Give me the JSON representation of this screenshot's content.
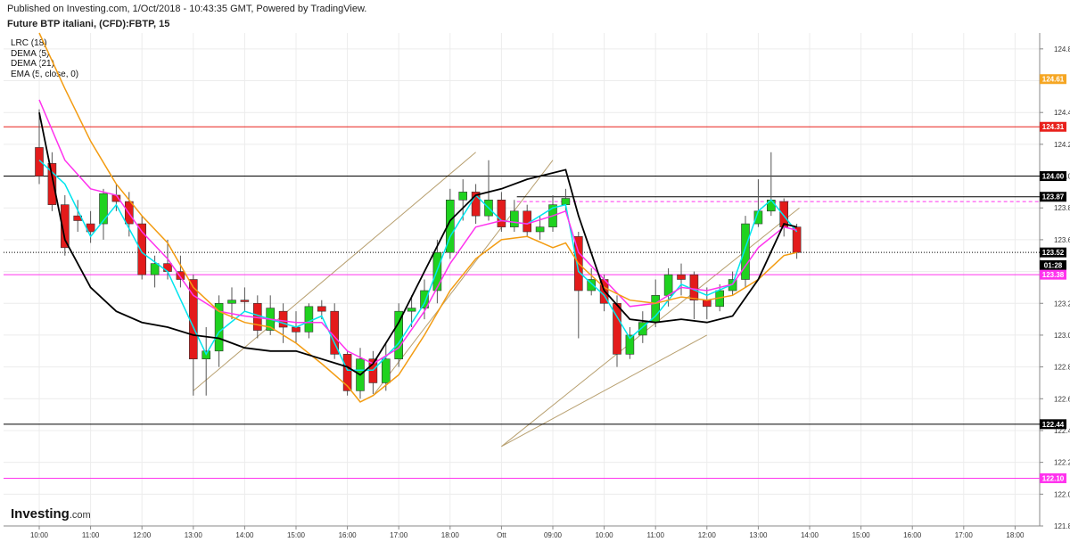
{
  "header": {
    "published": "Published on Investing.com, 1/Oct/2018 - 10:43:35 GMT, Powered by TradingView.",
    "title": "Future BTP italiani, (CFD):FBTP, 15"
  },
  "legend": [
    "LRC (18)",
    "DEMA (5)",
    "DEMA (21)",
    "EMA (5, close, 0)"
  ],
  "brand": {
    "name": "Investing",
    "suffix": ".com"
  },
  "chart_data": {
    "type": "candlestick",
    "ylim": [
      121.8,
      124.9
    ],
    "yticks": [
      "124.80",
      "124.40",
      "124.20",
      "124.00",
      "123.80",
      "123.60",
      "123.20",
      "123.00",
      "122.80",
      "122.60",
      "122.40",
      "122.20",
      "122.00",
      "121.80"
    ],
    "xticks": [
      "10:00",
      "11:00",
      "12:00",
      "13:00",
      "14:00",
      "15:00",
      "16:00",
      "17:00",
      "18:00",
      "Ott",
      "09:00",
      "10:00",
      "11:00",
      "12:00",
      "13:00",
      "14:00",
      "15:00",
      "16:00",
      "17:00",
      "18:00"
    ],
    "price_tags": [
      {
        "label": "124.61",
        "value": 124.61,
        "color": "#f5a623"
      },
      {
        "label": "124.31",
        "value": 124.31,
        "color": "#e8211c"
      },
      {
        "label": "124.00",
        "value": 124.0,
        "color": "#000000"
      },
      {
        "label": "123.87",
        "value": 123.87,
        "color": "#000000"
      },
      {
        "label": "123.52",
        "value": 123.52,
        "color": "#000000"
      },
      {
        "label": "01:28",
        "value": 123.44,
        "color": "#000000"
      },
      {
        "label": "123.38",
        "value": 123.38,
        "color": "#ff33ee"
      },
      {
        "label": "122.44",
        "value": 122.44,
        "color": "#000000"
      },
      {
        "label": "122.10",
        "value": 122.1,
        "color": "#ff33ee"
      }
    ],
    "hlines": [
      {
        "value": 124.31,
        "color": "#e8211c",
        "style": "solid"
      },
      {
        "value": 124.0,
        "color": "#000000",
        "style": "solid"
      },
      {
        "value": 123.87,
        "color": "#000000",
        "style": "solid",
        "from": 9.3
      },
      {
        "value": 123.84,
        "color": "#ff33ee",
        "style": "dashed",
        "from": 9.3
      },
      {
        "value": 123.52,
        "color": "#000000",
        "style": "dotted"
      },
      {
        "value": 123.38,
        "color": "#ff33ee",
        "style": "solid"
      },
      {
        "value": 122.44,
        "color": "#000000",
        "style": "solid"
      },
      {
        "value": 122.1,
        "color": "#ff33ee",
        "style": "solid"
      }
    ],
    "candles": [
      [
        0.0,
        124.18,
        124.0,
        124.42,
        123.95
      ],
      [
        0.25,
        124.08,
        123.82,
        124.15,
        123.78
      ],
      [
        0.5,
        123.82,
        123.55,
        123.88,
        123.5
      ],
      [
        0.75,
        123.75,
        123.72,
        123.85,
        123.65
      ],
      [
        1.0,
        123.7,
        123.65,
        123.78,
        123.58
      ],
      [
        1.25,
        123.7,
        123.89,
        123.92,
        123.6
      ],
      [
        1.5,
        123.88,
        123.84,
        123.95,
        123.78
      ],
      [
        1.75,
        123.84,
        123.7,
        123.9,
        123.62
      ],
      [
        2.0,
        123.7,
        123.38,
        123.75,
        123.35
      ],
      [
        2.25,
        123.38,
        123.45,
        123.5,
        123.3
      ],
      [
        2.5,
        123.45,
        123.4,
        123.6,
        123.35
      ],
      [
        2.75,
        123.4,
        123.35,
        123.5,
        123.3
      ],
      [
        3.0,
        123.35,
        122.85,
        123.38,
        122.62
      ],
      [
        3.25,
        122.85,
        122.9,
        123.05,
        122.62
      ],
      [
        3.5,
        122.9,
        123.2,
        123.25,
        122.8
      ],
      [
        3.75,
        123.2,
        123.22,
        123.3,
        123.1
      ],
      [
        4.0,
        123.22,
        123.21,
        123.3,
        123.15
      ],
      [
        4.25,
        123.2,
        123.03,
        123.25,
        122.98
      ],
      [
        4.5,
        123.03,
        123.17,
        123.25,
        123.0
      ],
      [
        4.75,
        123.15,
        123.05,
        123.2,
        122.95
      ],
      [
        5.0,
        123.05,
        123.02,
        123.15,
        122.95
      ],
      [
        5.25,
        123.02,
        123.18,
        123.2,
        122.98
      ],
      [
        5.5,
        123.18,
        123.15,
        123.22,
        123.1
      ],
      [
        5.75,
        123.15,
        122.88,
        123.2,
        122.85
      ],
      [
        6.0,
        122.88,
        122.65,
        122.9,
        122.62
      ],
      [
        6.25,
        122.65,
        122.85,
        122.92,
        122.6
      ],
      [
        6.5,
        122.85,
        122.7,
        122.9,
        122.63
      ],
      [
        6.75,
        122.7,
        122.85,
        122.95,
        122.65
      ],
      [
        7.0,
        122.85,
        123.15,
        123.2,
        122.8
      ],
      [
        7.25,
        123.15,
        123.17,
        123.25,
        123.05
      ],
      [
        7.5,
        123.17,
        123.28,
        123.35,
        123.1
      ],
      [
        7.75,
        123.28,
        123.52,
        123.6,
        123.2
      ],
      [
        8.0,
        123.52,
        123.85,
        123.92,
        123.48
      ],
      [
        8.25,
        123.85,
        123.9,
        123.98,
        123.72
      ],
      [
        8.5,
        123.9,
        123.75,
        123.95,
        123.7
      ],
      [
        8.75,
        123.75,
        123.85,
        124.1,
        123.72
      ],
      [
        9.0,
        123.85,
        123.68,
        123.9,
        123.65
      ],
      [
        9.25,
        123.68,
        123.78,
        123.85,
        123.65
      ],
      [
        9.5,
        123.78,
        123.65,
        123.82,
        123.62
      ],
      [
        9.75,
        123.65,
        123.68,
        123.75,
        123.6
      ],
      [
        10.0,
        123.68,
        123.82,
        123.88,
        123.65
      ],
      [
        10.25,
        123.82,
        123.86,
        123.92,
        123.78
      ],
      [
        10.5,
        123.62,
        123.28,
        123.65,
        122.98
      ],
      [
        10.75,
        123.28,
        123.35,
        123.42,
        123.25
      ],
      [
        11.0,
        123.35,
        123.2,
        123.38,
        123.15
      ],
      [
        11.25,
        123.2,
        122.88,
        123.25,
        122.8
      ],
      [
        11.5,
        122.88,
        123.0,
        123.05,
        122.85
      ],
      [
        11.75,
        123.0,
        123.08,
        123.15,
        122.95
      ],
      [
        12.0,
        123.08,
        123.25,
        123.35,
        123.05
      ],
      [
        12.25,
        123.25,
        123.38,
        123.42,
        123.18
      ],
      [
        12.5,
        123.38,
        123.35,
        123.45,
        123.25
      ],
      [
        12.75,
        123.38,
        123.22,
        123.4,
        123.1
      ],
      [
        13.0,
        123.22,
        123.18,
        123.3,
        123.1
      ],
      [
        13.25,
        123.18,
        123.28,
        123.32,
        123.15
      ],
      [
        13.5,
        123.28,
        123.35,
        123.4,
        123.25
      ],
      [
        13.75,
        123.35,
        123.7,
        123.75,
        123.3
      ],
      [
        14.0,
        123.7,
        123.78,
        123.98,
        123.68
      ],
      [
        14.25,
        123.78,
        123.85,
        124.15,
        123.75
      ],
      [
        14.5,
        123.84,
        123.68,
        123.86,
        123.62
      ],
      [
        14.75,
        123.68,
        123.52,
        123.7,
        123.48
      ]
    ],
    "series": [
      {
        "name": "DEMA (5)",
        "color": "#00e5ee",
        "points": [
          [
            0,
            124.1
          ],
          [
            0.5,
            123.95
          ],
          [
            1.0,
            123.62
          ],
          [
            1.5,
            123.82
          ],
          [
            2.0,
            123.52
          ],
          [
            2.5,
            123.4
          ],
          [
            3.0,
            123.05
          ],
          [
            3.25,
            122.88
          ],
          [
            3.5,
            123.02
          ],
          [
            4.0,
            123.15
          ],
          [
            4.5,
            123.1
          ],
          [
            5.0,
            123.05
          ],
          [
            5.5,
            123.12
          ],
          [
            6.0,
            122.78
          ],
          [
            6.5,
            122.78
          ],
          [
            7.0,
            122.95
          ],
          [
            7.5,
            123.2
          ],
          [
            8.0,
            123.62
          ],
          [
            8.5,
            123.88
          ],
          [
            9.0,
            123.72
          ],
          [
            9.5,
            123.7
          ],
          [
            10.0,
            123.8
          ],
          [
            10.25,
            123.82
          ],
          [
            10.5,
            123.4
          ],
          [
            11.0,
            123.25
          ],
          [
            11.5,
            122.98
          ],
          [
            12.0,
            123.12
          ],
          [
            12.5,
            123.32
          ],
          [
            13.0,
            123.25
          ],
          [
            13.5,
            123.32
          ],
          [
            14.0,
            123.78
          ],
          [
            14.25,
            123.85
          ],
          [
            14.5,
            123.75
          ],
          [
            14.75,
            123.65
          ]
        ]
      },
      {
        "name": "DEMA (21)",
        "color": "#ff33ee",
        "points": [
          [
            0,
            124.48
          ],
          [
            0.5,
            124.1
          ],
          [
            1.0,
            123.92
          ],
          [
            1.5,
            123.88
          ],
          [
            2.0,
            123.65
          ],
          [
            2.5,
            123.48
          ],
          [
            3.0,
            123.25
          ],
          [
            3.5,
            123.15
          ],
          [
            4.0,
            123.12
          ],
          [
            4.5,
            123.1
          ],
          [
            5.0,
            123.08
          ],
          [
            5.5,
            123.08
          ],
          [
            6.0,
            122.9
          ],
          [
            6.5,
            122.82
          ],
          [
            7.0,
            122.92
          ],
          [
            7.5,
            123.15
          ],
          [
            8.0,
            123.45
          ],
          [
            8.5,
            123.68
          ],
          [
            9.0,
            123.72
          ],
          [
            9.5,
            123.7
          ],
          [
            10.0,
            123.75
          ],
          [
            10.25,
            123.78
          ],
          [
            10.5,
            123.52
          ],
          [
            11.0,
            123.35
          ],
          [
            11.5,
            123.18
          ],
          [
            12.0,
            123.2
          ],
          [
            12.5,
            123.3
          ],
          [
            13.0,
            123.28
          ],
          [
            13.5,
            123.32
          ],
          [
            14.0,
            123.55
          ],
          [
            14.5,
            123.68
          ],
          [
            14.75,
            123.66
          ]
        ]
      },
      {
        "name": "EMA (5, close, 0)",
        "color": "#f39c12",
        "points": [
          [
            0,
            124.9
          ],
          [
            0.5,
            124.55
          ],
          [
            1.0,
            124.22
          ],
          [
            1.5,
            123.95
          ],
          [
            2.0,
            123.75
          ],
          [
            2.5,
            123.58
          ],
          [
            3.0,
            123.3
          ],
          [
            3.5,
            123.15
          ],
          [
            4.0,
            123.08
          ],
          [
            4.5,
            123.05
          ],
          [
            5.0,
            122.95
          ],
          [
            5.5,
            122.82
          ],
          [
            6.0,
            122.68
          ],
          [
            6.25,
            122.58
          ],
          [
            6.5,
            122.62
          ],
          [
            7.0,
            122.75
          ],
          [
            7.5,
            123.0
          ],
          [
            8.0,
            123.28
          ],
          [
            8.5,
            123.48
          ],
          [
            9.0,
            123.6
          ],
          [
            9.5,
            123.62
          ],
          [
            10.0,
            123.55
          ],
          [
            10.25,
            123.58
          ],
          [
            10.5,
            123.45
          ],
          [
            11.0,
            123.3
          ],
          [
            11.5,
            123.22
          ],
          [
            12.0,
            123.2
          ],
          [
            12.5,
            123.24
          ],
          [
            13.0,
            123.22
          ],
          [
            13.5,
            123.25
          ],
          [
            14.0,
            123.35
          ],
          [
            14.5,
            123.5
          ],
          [
            14.75,
            123.52
          ]
        ]
      },
      {
        "name": "LRC (18)",
        "color": "#000000",
        "points": [
          [
            0,
            124.4
          ],
          [
            0.5,
            123.6
          ],
          [
            1.0,
            123.3
          ],
          [
            1.5,
            123.15
          ],
          [
            2.0,
            123.08
          ],
          [
            2.5,
            123.05
          ],
          [
            3.0,
            123.0
          ],
          [
            3.5,
            122.98
          ],
          [
            4.0,
            122.92
          ],
          [
            4.5,
            122.9
          ],
          [
            5.0,
            122.9
          ],
          [
            5.5,
            122.85
          ],
          [
            6.0,
            122.8
          ],
          [
            6.25,
            122.75
          ],
          [
            6.5,
            122.82
          ],
          [
            7.0,
            123.08
          ],
          [
            7.5,
            123.4
          ],
          [
            8.0,
            123.72
          ],
          [
            8.5,
            123.88
          ],
          [
            9.0,
            123.92
          ],
          [
            9.5,
            123.98
          ],
          [
            10.0,
            124.02
          ],
          [
            10.25,
            124.04
          ],
          [
            10.5,
            123.75
          ],
          [
            11.0,
            123.28
          ],
          [
            11.5,
            123.1
          ],
          [
            12.0,
            123.08
          ],
          [
            12.5,
            123.1
          ],
          [
            13.0,
            123.08
          ],
          [
            13.5,
            123.12
          ],
          [
            14.0,
            123.35
          ],
          [
            14.5,
            123.7
          ],
          [
            14.75,
            123.68
          ]
        ]
      }
    ],
    "trendlines": [
      {
        "color": "#b8a070",
        "points": [
          [
            3.0,
            122.65
          ],
          [
            8.5,
            124.15
          ]
        ]
      },
      {
        "color": "#b8a070",
        "points": [
          [
            6.5,
            122.62
          ],
          [
            10.0,
            124.1
          ]
        ]
      },
      {
        "color": "#b8a070",
        "points": [
          [
            9.0,
            122.3
          ],
          [
            14.8,
            123.8
          ]
        ]
      },
      {
        "color": "#b8a070",
        "points": [
          [
            9.0,
            122.3
          ],
          [
            13.0,
            123.0
          ]
        ]
      }
    ]
  }
}
